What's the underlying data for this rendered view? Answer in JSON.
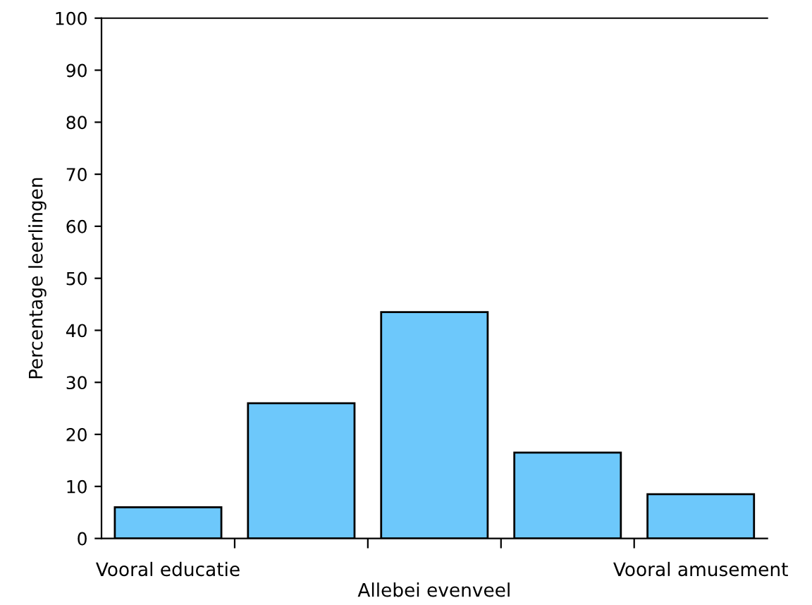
{
  "chart_data": {
    "type": "bar",
    "ylabel": "Percentage leerlingen",
    "xlabel": "Allebei evenveel",
    "categories": [
      "Vooral educatie",
      null,
      null,
      null,
      "Vooral amusement"
    ],
    "values": [
      6,
      26,
      43.5,
      16.5,
      8.5
    ],
    "color": "#6dc8fb",
    "ylim": [
      0,
      100
    ],
    "yticks": [
      0,
      10,
      20,
      30,
      40,
      50,
      60,
      70,
      80,
      90,
      100
    ],
    "grid": false,
    "legend": false
  }
}
